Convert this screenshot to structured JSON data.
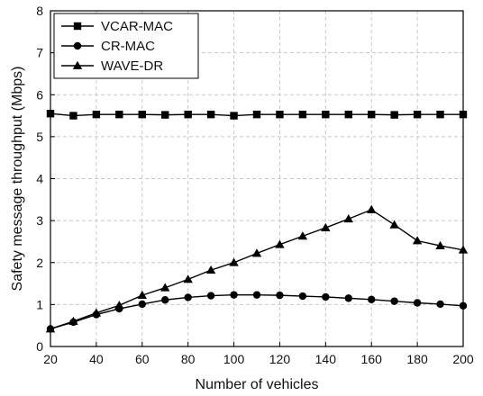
{
  "chart_data": {
    "type": "line",
    "title": "",
    "xlabel": "Number of vehicles",
    "ylabel": "Safety message throughput (Mbps)",
    "xlim": [
      20,
      200
    ],
    "ylim": [
      0,
      8
    ],
    "xticks": [
      20,
      40,
      60,
      80,
      100,
      120,
      140,
      160,
      180,
      200
    ],
    "yticks": [
      0,
      1,
      2,
      3,
      4,
      5,
      6,
      7,
      8
    ],
    "grid": true,
    "legend_position": "top-left",
    "x": [
      20,
      30,
      40,
      50,
      60,
      70,
      80,
      90,
      100,
      110,
      120,
      130,
      140,
      150,
      160,
      170,
      180,
      190,
      200
    ],
    "series": [
      {
        "name": "VCAR-MAC",
        "marker": "square",
        "color": "#000000",
        "values": [
          5.55,
          5.5,
          5.53,
          5.53,
          5.53,
          5.52,
          5.53,
          5.53,
          5.5,
          5.53,
          5.53,
          5.53,
          5.53,
          5.53,
          5.53,
          5.52,
          5.53,
          5.53,
          5.53
        ]
      },
      {
        "name": "CR-MAC",
        "marker": "circle",
        "color": "#000000",
        "values": [
          0.42,
          0.58,
          0.76,
          0.9,
          1.01,
          1.11,
          1.17,
          1.21,
          1.23,
          1.23,
          1.22,
          1.2,
          1.18,
          1.15,
          1.12,
          1.08,
          1.04,
          1.01,
          0.97
        ]
      },
      {
        "name": "WAVE-DR",
        "marker": "triangle",
        "color": "#000000",
        "values": [
          0.42,
          0.6,
          0.8,
          0.98,
          1.22,
          1.4,
          1.6,
          1.82,
          2.0,
          2.22,
          2.43,
          2.63,
          2.83,
          3.04,
          3.26,
          2.9,
          2.52,
          2.4,
          2.3
        ]
      }
    ]
  }
}
